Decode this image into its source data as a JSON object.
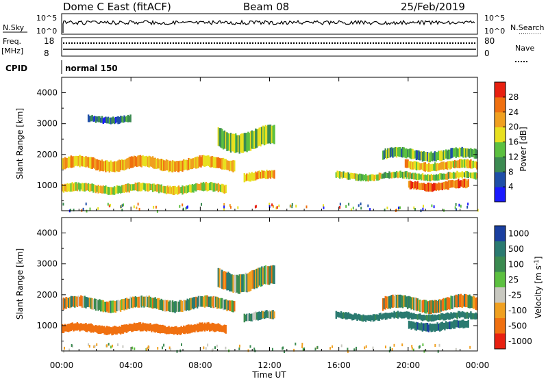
{
  "header": {
    "title": "Dome C East (fitACF)",
    "beam": "Beam 08",
    "date": "25/Feb/2019"
  },
  "params": {
    "nsky_label": "N.Sky",
    "nsky_ticks": [
      "10^5",
      "10^0"
    ],
    "nsearch_label": "N.Search",
    "nsearch_ticks": [
      "10^5",
      "10^0"
    ],
    "freq_label": "Freq.",
    "freq_unit": "[MHz]",
    "freq_ticks": [
      "18",
      "8"
    ],
    "nave_label": "Nave",
    "nave_ticks": [
      "80",
      "0"
    ],
    "cpid_label": "CPID",
    "cpid_value": "normal 150"
  },
  "axes": {
    "x_ticks": [
      "00:00",
      "04:00",
      "08:00",
      "12:00",
      "16:00",
      "20:00",
      "00:00"
    ],
    "xlabel": "Time UT",
    "y_ticks": [
      "1000",
      "2000",
      "3000",
      "4000"
    ],
    "ylabel": "Slant Range [km]"
  },
  "colorbars": {
    "power": {
      "label": "Power [dB]",
      "ticks": [
        "4",
        "8",
        "12",
        "16",
        "20",
        "24",
        "28"
      ],
      "colors": [
        "#1a1aff",
        "#1f4fa8",
        "#3c8b52",
        "#5cc040",
        "#e8e020",
        "#f0a020",
        "#f07010",
        "#e82010"
      ]
    },
    "velocity": {
      "label": "Velocity",
      "unit": "[m s",
      "unit_exp": "-1",
      "unit_end": "]",
      "ticks": [
        "1000",
        "500",
        "100",
        "25",
        "-25",
        "-100",
        "-500",
        "-1000"
      ],
      "colors": [
        "#1a3fa0",
        "#2a7a70",
        "#3a8a50",
        "#5cc040",
        "#c8c8c0",
        "#f0a020",
        "#f07010",
        "#e82010"
      ]
    }
  },
  "chart_data": [
    {
      "type": "heatmap",
      "panel": "power",
      "x_range_hours": [
        0,
        24
      ],
      "y_range_km": [
        180,
        4500
      ],
      "colorbar_range_db": [
        0,
        32
      ],
      "bands": [
        {
          "t_start": 0.0,
          "t_end": 10.0,
          "r_center": 1700,
          "r_width": 350,
          "power": 22
        },
        {
          "t_start": 0.0,
          "t_end": 9.5,
          "r_center": 900,
          "r_width": 250,
          "power": 18
        },
        {
          "t_start": 9.0,
          "t_end": 12.3,
          "r_center": 2500,
          "r_width": 600,
          "power": 14
        },
        {
          "t_start": 10.5,
          "t_end": 12.3,
          "r_center": 1300,
          "r_width": 250,
          "power": 22
        },
        {
          "t_start": 15.8,
          "t_end": 24.0,
          "r_center": 1300,
          "r_width": 200,
          "power": 16
        },
        {
          "t_start": 18.5,
          "t_end": 24.0,
          "r_center": 2000,
          "r_width": 300,
          "power": 12
        },
        {
          "t_start": 19.8,
          "t_end": 24.0,
          "r_center": 1650,
          "r_width": 250,
          "power": 20
        },
        {
          "t_start": 20.0,
          "t_end": 23.5,
          "r_center": 1000,
          "r_width": 250,
          "power": 26
        },
        {
          "t_start": 1.5,
          "t_end": 4.0,
          "r_center": 3150,
          "r_width": 200,
          "power": 8
        }
      ]
    },
    {
      "type": "heatmap",
      "panel": "velocity",
      "x_range_hours": [
        0,
        24
      ],
      "y_range_km": [
        180,
        4500
      ],
      "colorbar_range_ms": [
        -1000,
        1000
      ],
      "bands": [
        {
          "t_start": 0.0,
          "t_end": 10.0,
          "r_center": 1700,
          "r_width": 350,
          "velocity": 0
        },
        {
          "t_start": 0.0,
          "t_end": 9.5,
          "r_center": 900,
          "r_width": 250,
          "velocity": -300
        },
        {
          "t_start": 9.0,
          "t_end": 12.3,
          "r_center": 2500,
          "r_width": 600,
          "velocity": 0
        },
        {
          "t_start": 10.5,
          "t_end": 12.3,
          "r_center": 1300,
          "r_width": 250,
          "velocity": 100
        },
        {
          "t_start": 15.8,
          "t_end": 24.0,
          "r_center": 1300,
          "r_width": 200,
          "velocity": 200
        },
        {
          "t_start": 18.5,
          "t_end": 24.0,
          "r_center": 1700,
          "r_width": 400,
          "velocity": 0
        },
        {
          "t_start": 20.0,
          "t_end": 23.5,
          "r_center": 1000,
          "r_width": 250,
          "velocity": 400
        }
      ]
    }
  ]
}
